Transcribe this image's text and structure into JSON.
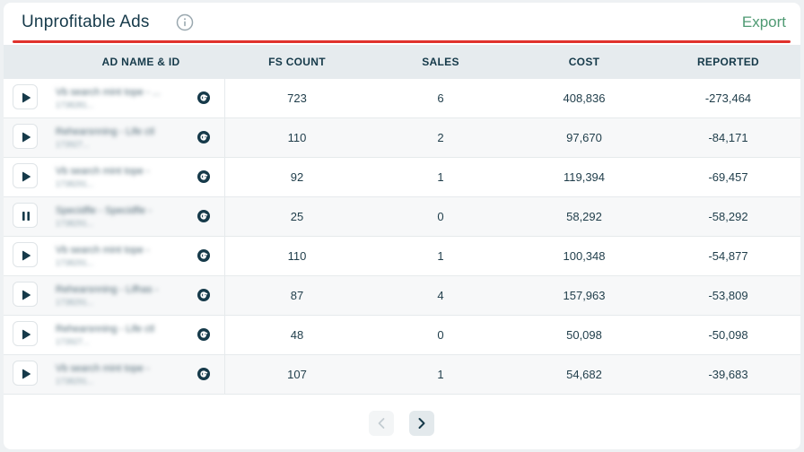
{
  "header": {
    "title": "Unprofitable Ads",
    "export_label": "Export"
  },
  "colors": {
    "accent_red": "#e0322c",
    "export_green": "#4f9a73",
    "text_dark": "#163a4a",
    "header_bg": "#e6ebee"
  },
  "table": {
    "columns": [
      "AD NAME & ID",
      "FS COUNT",
      "SALES",
      "COST",
      "REPORTED"
    ],
    "rows": [
      {
        "status": "play",
        "name": "Vb search mint tope - ...",
        "id": "1738281...",
        "fs_count": "723",
        "sales": "6",
        "cost": "408,836",
        "reported": "-273,464"
      },
      {
        "status": "play",
        "name": "Rehearsnning - Life ctl",
        "id": "173927...",
        "fs_count": "110",
        "sales": "2",
        "cost": "97,670",
        "reported": "-84,171"
      },
      {
        "status": "play",
        "name": "Vb search mint tope -",
        "id": "1738291...",
        "fs_count": "92",
        "sales": "1",
        "cost": "119,394",
        "reported": "-69,457"
      },
      {
        "status": "pause",
        "name": "Specidfle - Specidfle -",
        "id": "1738291...",
        "fs_count": "25",
        "sales": "0",
        "cost": "58,292",
        "reported": "-58,292"
      },
      {
        "status": "play",
        "name": "Vb search mint tope -",
        "id": "1738291...",
        "fs_count": "110",
        "sales": "1",
        "cost": "100,348",
        "reported": "-54,877"
      },
      {
        "status": "play",
        "name": "Rehearsnning - Lifhas -",
        "id": "1738291...",
        "fs_count": "87",
        "sales": "4",
        "cost": "157,963",
        "reported": "-53,809"
      },
      {
        "status": "play",
        "name": "Rehearsnning - Life ctl",
        "id": "173927...",
        "fs_count": "48",
        "sales": "0",
        "cost": "50,098",
        "reported": "-50,098"
      },
      {
        "status": "play",
        "name": "Vb search mint tope -",
        "id": "1738291...",
        "fs_count": "107",
        "sales": "1",
        "cost": "54,682",
        "reported": "-39,683"
      }
    ]
  },
  "icons": {
    "info": "info-icon",
    "play": "play-icon",
    "pause": "pause-icon",
    "google": "google-icon",
    "prev": "chevron-left-icon",
    "next": "chevron-right-icon"
  }
}
